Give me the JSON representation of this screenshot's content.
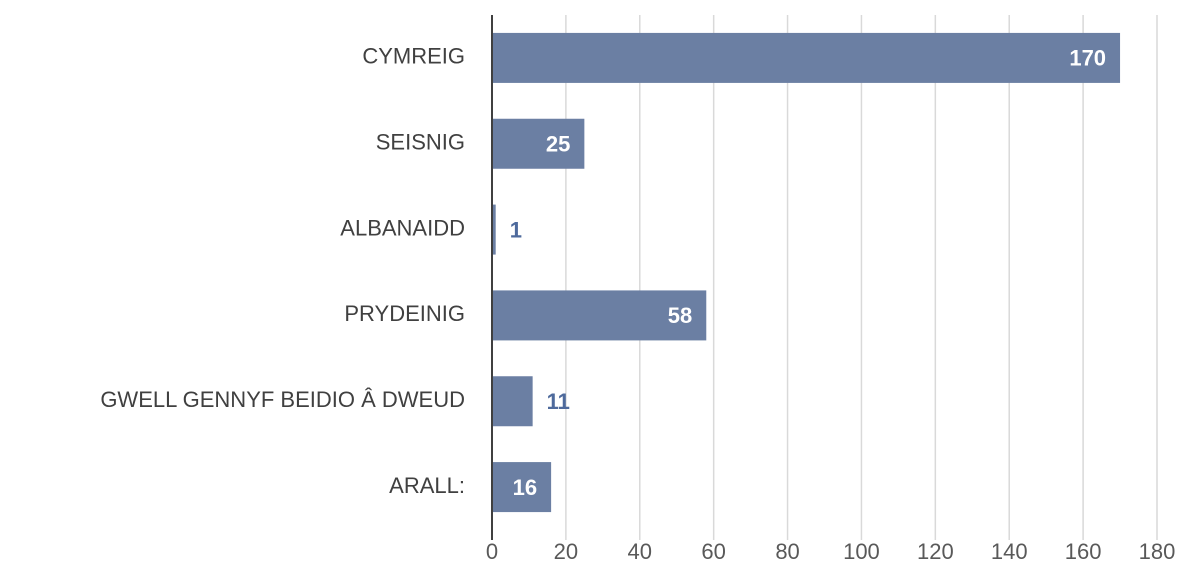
{
  "chart_data": {
    "type": "bar",
    "orientation": "horizontal",
    "categories": [
      "CYMREIG",
      "SEISNIG",
      "ALBANAIDD",
      "PRYDEINIG",
      "GWELL GENNYF BEIDIO Â DWEUD",
      "ARALL:"
    ],
    "values": [
      170,
      25,
      1,
      58,
      11,
      16
    ],
    "color": "#6b7fa3",
    "xlim": [
      0,
      180
    ],
    "xticks": [
      0,
      20,
      40,
      60,
      80,
      100,
      120,
      140,
      160,
      180
    ],
    "grid": true
  }
}
